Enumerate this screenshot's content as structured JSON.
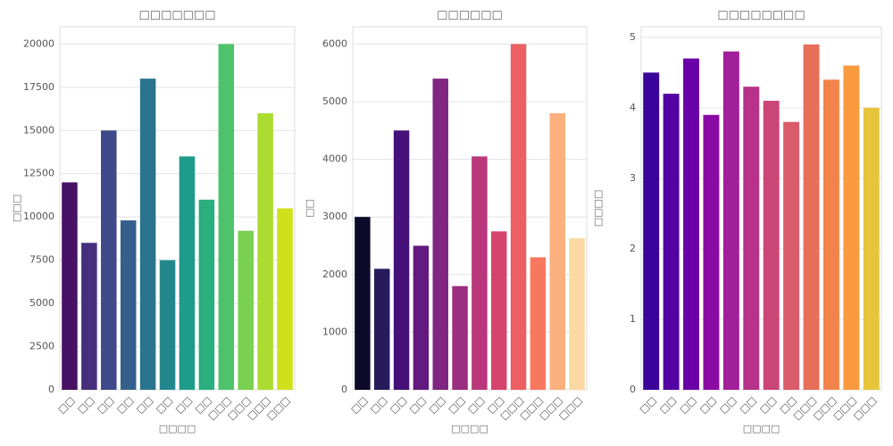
{
  "chart_data": [
    {
      "type": "bar",
      "title": "□□□□□□□",
      "xlabel": "□□□□",
      "ylabel": "□□□",
      "categories": [
        "□□",
        "□□",
        "□□",
        "□□",
        "□□",
        "□□",
        "□□",
        "□□",
        "□□□",
        "□□□",
        "□□□",
        "□□□"
      ],
      "values": [
        12000,
        8500,
        15000,
        9800,
        18000,
        7500,
        13500,
        11000,
        20000,
        9200,
        16000,
        10500
      ],
      "colors": [
        "#471164",
        "#472f7d",
        "#3e4a89",
        "#35608d",
        "#2b748e",
        "#23888e",
        "#1e9b8a",
        "#2aaf7f",
        "#4ec36b",
        "#7ad151",
        "#abdc32",
        "#d0e11c"
      ],
      "ylim": [
        0,
        21000
      ],
      "yticks": [
        0,
        2500,
        5000,
        7500,
        10000,
        12500,
        15000,
        17500,
        20000
      ],
      "grid": true
    },
    {
      "type": "bar",
      "title": "□□□□□□",
      "xlabel": "□□□□",
      "ylabel": "□□",
      "categories": [
        "□□",
        "□□",
        "□□",
        "□□",
        "□□",
        "□□",
        "□□",
        "□□",
        "□□□",
        "□□□",
        "□□□",
        "□□□"
      ],
      "values": [
        3000,
        2100,
        4500,
        2500,
        5400,
        1800,
        4050,
        2750,
        6000,
        2300,
        4800,
        2630
      ],
      "colors": [
        "#0d0a29",
        "#271b5c",
        "#451077",
        "#63197f",
        "#802582",
        "#9c2e7f",
        "#b9377a",
        "#d5446d",
        "#ec5f62",
        "#f8785f",
        "#fcb07e",
        "#fcd9a4"
      ],
      "ylim": [
        0,
        6300
      ],
      "yticks": [
        0,
        1000,
        2000,
        3000,
        4000,
        5000,
        6000
      ],
      "grid": true
    },
    {
      "type": "bar",
      "title": "□□□□□□□□",
      "xlabel": "□□□□",
      "ylabel": "□□□□",
      "categories": [
        "□□",
        "□□",
        "□□",
        "□□",
        "□□",
        "□□",
        "□□",
        "□□",
        "□□□",
        "□□□",
        "□□□",
        "□□□"
      ],
      "values": [
        4.5,
        4.2,
        4.7,
        3.9,
        4.8,
        4.3,
        4.1,
        3.8,
        4.9,
        4.4,
        4.6,
        4.0
      ],
      "colors": [
        "#3a049a",
        "#5302a3",
        "#6a00a8",
        "#8b0aa5",
        "#a21f9b",
        "#b83289",
        "#cb4678",
        "#da5b69",
        "#e76f5a",
        "#f2844b",
        "#f99a3e",
        "#e6c53b"
      ],
      "ylim": [
        0,
        5.15
      ],
      "yticks": [
        0,
        1,
        2,
        3,
        4,
        5
      ],
      "grid": true
    }
  ]
}
